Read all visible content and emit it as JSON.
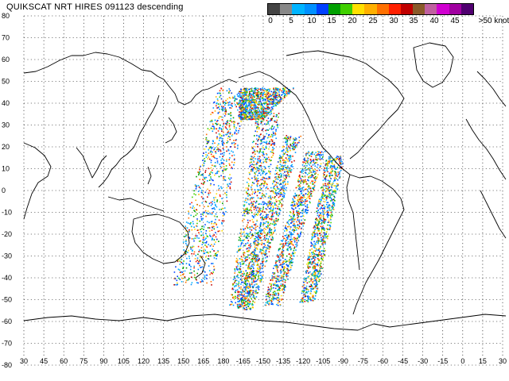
{
  "title": "QUIKSCAT NRT HIRES 091123 descending",
  "colorbar": {
    "labels": [
      "0",
      "5",
      "10",
      "15",
      "20",
      "25",
      "30",
      "35",
      "40",
      "45",
      ">50 knots"
    ],
    "colors": [
      "#444444",
      "#888888",
      "#00b4ff",
      "#0090ff",
      "#0040ff",
      "#00a000",
      "#40d000",
      "#ffe000",
      "#ffb000",
      "#ff7000",
      "#ff2000",
      "#c00000",
      "#8a5a2a",
      "#c060a0",
      "#d000d0",
      "#a000a0",
      "#500070"
    ]
  },
  "map": {
    "lat_labels": [
      "80",
      "70",
      "60",
      "50",
      "40",
      "30",
      "20",
      "10",
      "0",
      "-10",
      "-20",
      "-30",
      "-40",
      "-50",
      "-60",
      "-70",
      "-80"
    ],
    "lon_labels": [
      "30",
      "45",
      "60",
      "75",
      "90",
      "105",
      "120",
      "135",
      "150",
      "165",
      "180",
      "-165",
      "-150",
      "-135",
      "-120",
      "-105",
      "-90",
      "-75",
      "-60",
      "-45",
      "-30",
      "-15",
      "0",
      "15",
      "30"
    ]
  }
}
